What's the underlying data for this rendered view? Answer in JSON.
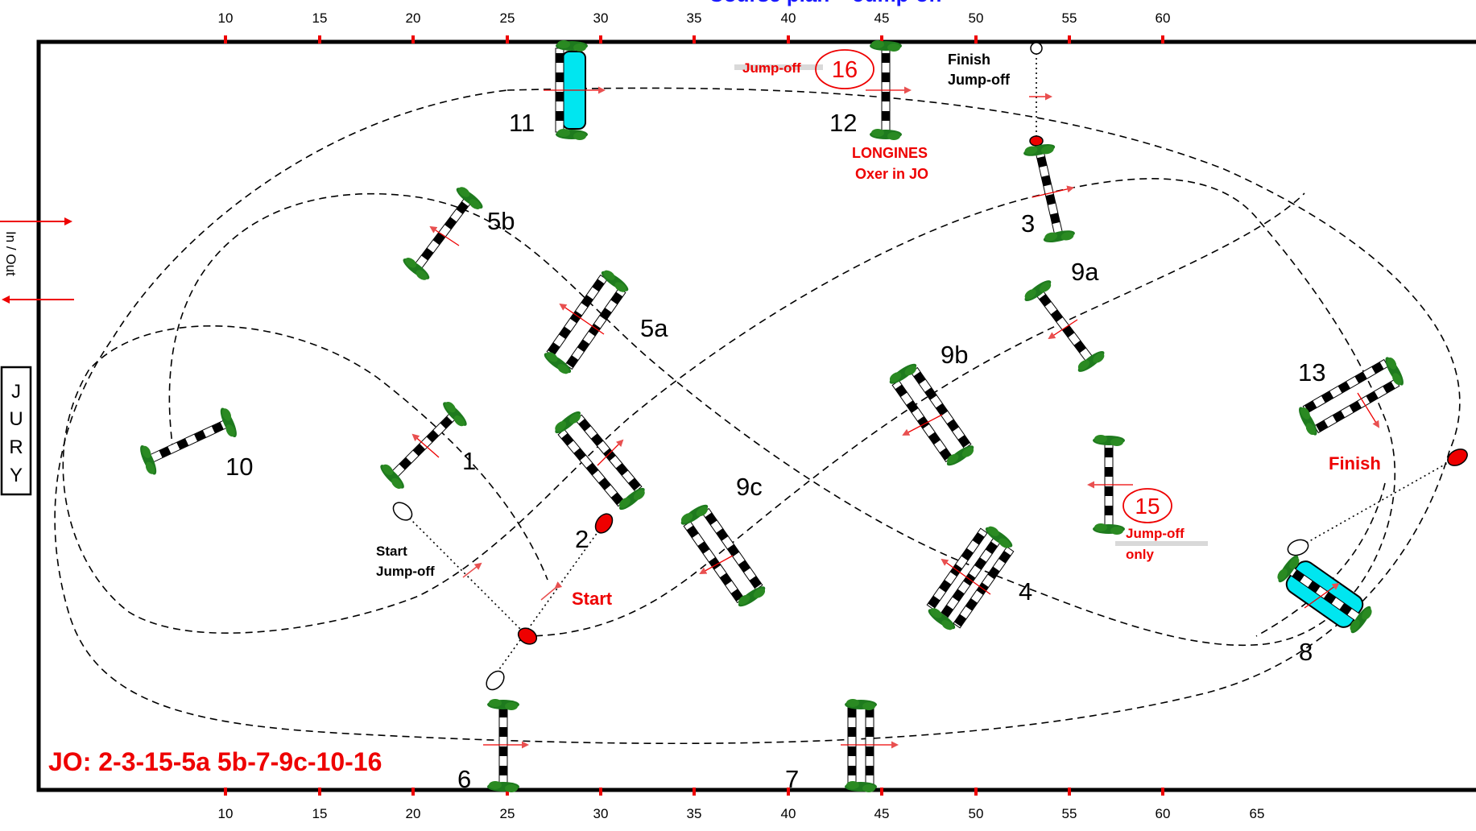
{
  "title": "Course plan – Jump-off",
  "ruler": {
    "top_ticks": [
      "10",
      "15",
      "20",
      "25",
      "30",
      "35",
      "40",
      "45",
      "50",
      "55",
      "60"
    ],
    "bottom_ticks": [
      "10",
      "15",
      "20",
      "25",
      "30",
      "35",
      "40",
      "45",
      "50",
      "55",
      "60",
      "65"
    ]
  },
  "labels": {
    "in_out": "In / Out",
    "jury": [
      "J",
      "U",
      "R",
      "Y"
    ],
    "start": "Start",
    "finish": "Finish",
    "start_jumpoff_1": "Start",
    "start_jumpoff_2": "Jump-off",
    "finish_jumpoff_1": "Finish",
    "finish_jumpoff_2": "Jump-off",
    "jumpoff_tag": "Jump-off",
    "jumpoff_only_1": "Jump-off",
    "jumpoff_only_2": "only",
    "longines_1": "LONGINES",
    "longines_2": "Oxer in JO",
    "jo_sequence": "JO: 2-3-15-5a 5b-7-9c-10-16"
  },
  "obstacles": [
    {
      "id": "1",
      "label": "1",
      "kind": "vertical"
    },
    {
      "id": "2",
      "label": "2",
      "kind": "oxer"
    },
    {
      "id": "3",
      "label": "3",
      "kind": "vertical"
    },
    {
      "id": "4",
      "label": "4",
      "kind": "triple-bar"
    },
    {
      "id": "5a",
      "label": "5a",
      "kind": "oxer"
    },
    {
      "id": "5b",
      "label": "5b",
      "kind": "vertical"
    },
    {
      "id": "6",
      "label": "6",
      "kind": "vertical"
    },
    {
      "id": "7",
      "label": "7",
      "kind": "oxer"
    },
    {
      "id": "8",
      "label": "8",
      "kind": "water-vertical"
    },
    {
      "id": "9a",
      "label": "9a",
      "kind": "vertical"
    },
    {
      "id": "9b",
      "label": "9b",
      "kind": "oxer"
    },
    {
      "id": "9c",
      "label": "9c",
      "kind": "oxer"
    },
    {
      "id": "10",
      "label": "10",
      "kind": "vertical"
    },
    {
      "id": "11",
      "label": "11",
      "kind": "water-vertical"
    },
    {
      "id": "12",
      "label": "12",
      "kind": "vertical"
    },
    {
      "id": "13",
      "label": "13",
      "kind": "oxer"
    },
    {
      "id": "15",
      "label": "15",
      "kind": "vertical-jumpoff-only"
    },
    {
      "id": "16",
      "label": "16",
      "kind": "jumpoff-marker"
    }
  ],
  "colors": {
    "ink": "#000000",
    "red": "#ee0000",
    "green": "#1e7a1e",
    "water": "#00e6f0",
    "blue_title": "#1a1aff"
  }
}
